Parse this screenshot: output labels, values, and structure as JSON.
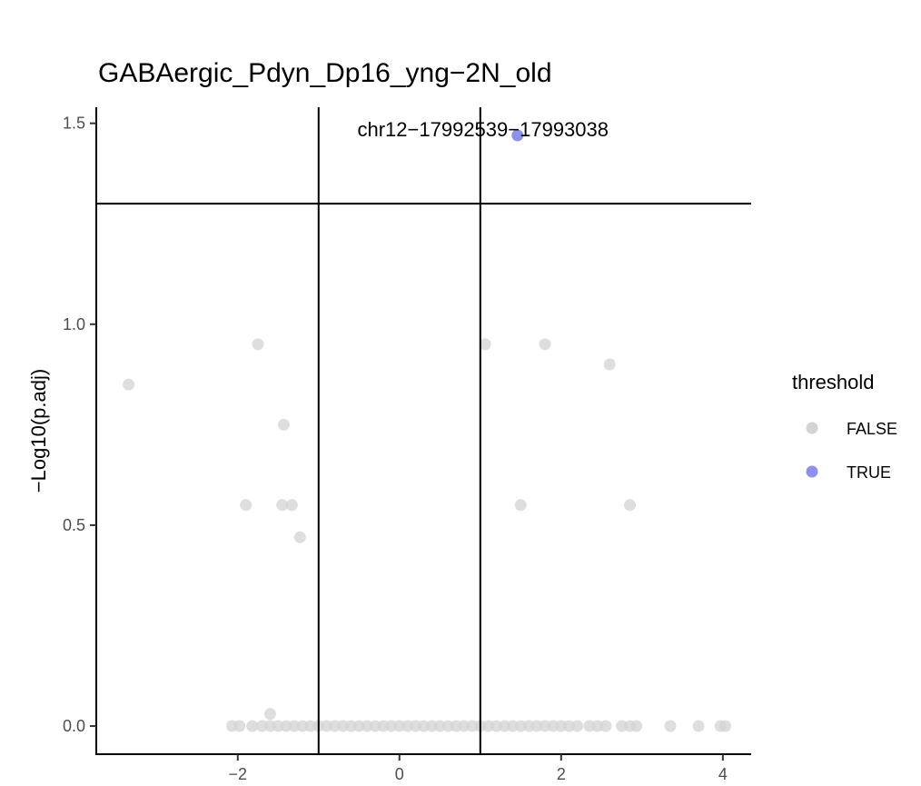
{
  "chart_data": {
    "type": "scatter",
    "title": "GABAergic_Pdyn_Dp16_yng−2N_old",
    "xlabel": "",
    "ylabel": "−Log10(p.adj)",
    "xlim": [
      -3.75,
      4.35
    ],
    "ylim": [
      -0.07,
      1.54
    ],
    "x_ticks": [
      -2,
      0,
      2,
      4
    ],
    "x_tick_labels": [
      "−2",
      "0",
      "2",
      "4"
    ],
    "y_ticks": [
      0.0,
      0.5,
      1.0,
      1.5
    ],
    "y_tick_labels": [
      "0.0",
      "0.5",
      "1.0",
      "1.5"
    ],
    "vlines": [
      -1,
      1
    ],
    "hline": 1.3,
    "grid": false,
    "legend": {
      "title": "threshold",
      "position": "right",
      "entries": [
        {
          "label": "FALSE",
          "color": "#d3d3d3"
        },
        {
          "label": "TRUE",
          "color": "#8f8fef"
        }
      ]
    },
    "annotation": {
      "text": "chr12−17992539−17993038",
      "x": 1.46,
      "y": 1.47
    },
    "series": [
      {
        "name": "FALSE",
        "color": "#d3d3d3",
        "points": [
          [
            -3.35,
            0.85
          ],
          [
            -1.9,
            0.55
          ],
          [
            -1.75,
            0.95
          ],
          [
            -1.43,
            0.75
          ],
          [
            -1.45,
            0.55
          ],
          [
            -1.33,
            0.55
          ],
          [
            -1.23,
            0.47
          ],
          [
            -1.6,
            0.03
          ],
          [
            1.06,
            0.95
          ],
          [
            1.8,
            0.95
          ],
          [
            2.6,
            0.9
          ],
          [
            1.5,
            0.55
          ],
          [
            2.85,
            0.55
          ],
          [
            -2.07,
            0.0
          ],
          [
            -1.98,
            0.0
          ],
          [
            -1.82,
            0.0
          ],
          [
            -1.7,
            0.0
          ],
          [
            -1.6,
            0.0
          ],
          [
            -1.5,
            0.0
          ],
          [
            -1.4,
            0.0
          ],
          [
            -1.3,
            0.0
          ],
          [
            -1.2,
            0.0
          ],
          [
            -1.1,
            0.0
          ],
          [
            -1.0,
            0.0
          ],
          [
            -0.9,
            0.0
          ],
          [
            -0.8,
            0.0
          ],
          [
            -0.7,
            0.0
          ],
          [
            -0.6,
            0.0
          ],
          [
            -0.5,
            0.0
          ],
          [
            -0.4,
            0.0
          ],
          [
            -0.3,
            0.0
          ],
          [
            -0.2,
            0.0
          ],
          [
            -0.1,
            0.0
          ],
          [
            0.0,
            0.0
          ],
          [
            0.1,
            0.0
          ],
          [
            0.2,
            0.0
          ],
          [
            0.3,
            0.0
          ],
          [
            0.4,
            0.0
          ],
          [
            0.5,
            0.0
          ],
          [
            0.6,
            0.0
          ],
          [
            0.7,
            0.0
          ],
          [
            0.8,
            0.0
          ],
          [
            0.9,
            0.0
          ],
          [
            1.0,
            0.0
          ],
          [
            1.1,
            0.0
          ],
          [
            1.2,
            0.0
          ],
          [
            1.3,
            0.0
          ],
          [
            1.4,
            0.0
          ],
          [
            1.5,
            0.0
          ],
          [
            1.6,
            0.0
          ],
          [
            1.7,
            0.0
          ],
          [
            1.8,
            0.0
          ],
          [
            1.9,
            0.0
          ],
          [
            2.0,
            0.0
          ],
          [
            2.1,
            0.0
          ],
          [
            2.2,
            0.0
          ],
          [
            2.35,
            0.0
          ],
          [
            2.45,
            0.0
          ],
          [
            2.55,
            0.0
          ],
          [
            2.75,
            0.0
          ],
          [
            2.85,
            0.0
          ],
          [
            2.93,
            0.0
          ],
          [
            3.35,
            0.0
          ],
          [
            3.7,
            0.0
          ],
          [
            3.97,
            0.0
          ],
          [
            4.03,
            0.0
          ]
        ]
      },
      {
        "name": "TRUE",
        "color": "#8f8fef",
        "points": [
          [
            1.46,
            1.47
          ]
        ]
      }
    ]
  }
}
